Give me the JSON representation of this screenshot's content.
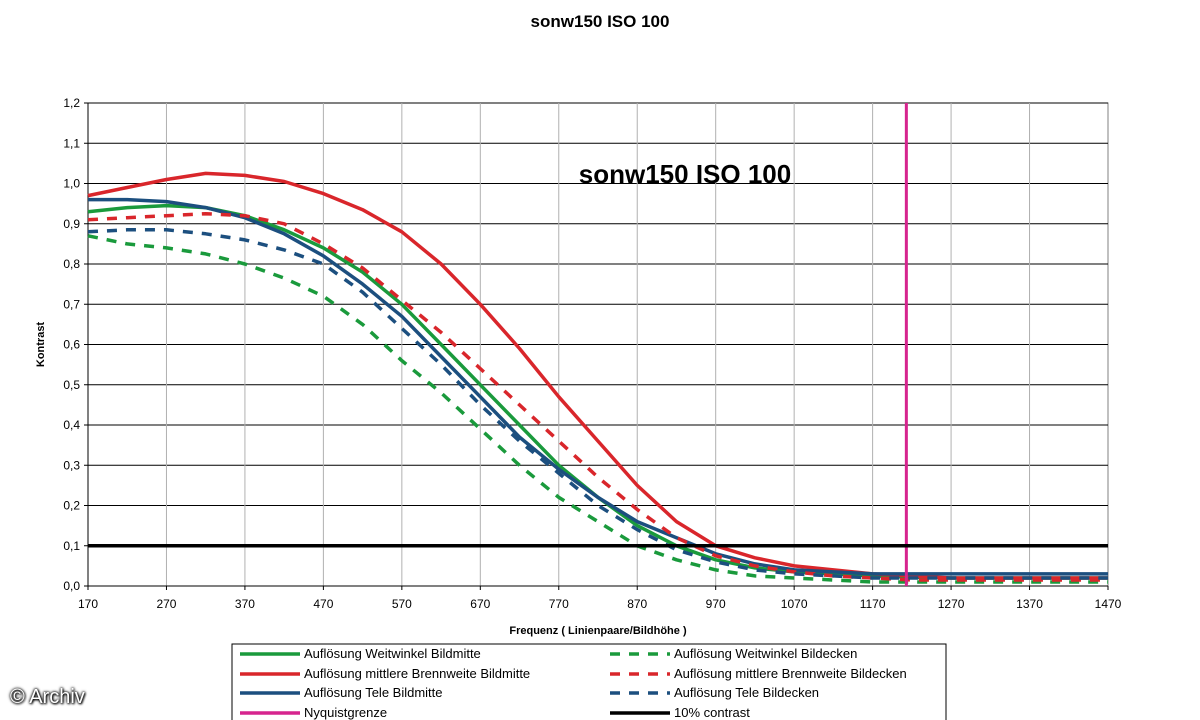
{
  "page": {
    "title": "sonw150 ISO 100",
    "watermark": "© Archiv"
  },
  "chart_data": {
    "type": "line",
    "title": "sonw150 ISO 100",
    "inner_title": "sonw150 ISO 100",
    "xlabel": "Frequenz ( Linienpaare/Bildhöhe )",
    "ylabel": "Kontrast",
    "xlim": [
      170,
      1470
    ],
    "ylim": [
      0,
      1.2
    ],
    "x_ticks": [
      "170",
      "270",
      "370",
      "470",
      "570",
      "670",
      "770",
      "870",
      "970",
      "1070",
      "1170",
      "1270",
      "1370",
      "1470"
    ],
    "y_ticks": [
      "0,0",
      "0,1",
      "0,2",
      "0,3",
      "0,4",
      "0,5",
      "0,6",
      "0,7",
      "0,8",
      "0,9",
      "1,0",
      "1,1",
      "1,2"
    ],
    "grid": "horizontal",
    "legend_position": "bottom",
    "series": [
      {
        "name": "Auflösung Weitwinkel Bildmitte",
        "color": "#1a9a3c",
        "dash": "solid",
        "x": [
          170,
          220,
          270,
          320,
          370,
          420,
          470,
          520,
          570,
          620,
          670,
          720,
          770,
          820,
          870,
          920,
          970,
          1020,
          1070,
          1120,
          1170,
          1220,
          1270,
          1370,
          1470
        ],
        "y": [
          0.93,
          0.94,
          0.945,
          0.94,
          0.92,
          0.885,
          0.84,
          0.78,
          0.7,
          0.6,
          0.5,
          0.4,
          0.3,
          0.22,
          0.15,
          0.1,
          0.065,
          0.045,
          0.035,
          0.03,
          0.025,
          0.022,
          0.02,
          0.02,
          0.02
        ]
      },
      {
        "name": "Auflösung mittlere Brennweite Bildmitte",
        "color": "#d9262b",
        "dash": "solid",
        "x": [
          170,
          220,
          270,
          320,
          370,
          420,
          470,
          520,
          570,
          620,
          670,
          720,
          770,
          820,
          870,
          920,
          970,
          1020,
          1070,
          1120,
          1170,
          1220,
          1270,
          1370,
          1470
        ],
        "y": [
          0.97,
          0.99,
          1.01,
          1.025,
          1.02,
          1.005,
          0.975,
          0.935,
          0.88,
          0.8,
          0.7,
          0.59,
          0.47,
          0.36,
          0.25,
          0.16,
          0.1,
          0.07,
          0.05,
          0.04,
          0.03,
          0.025,
          0.02,
          0.02,
          0.02
        ]
      },
      {
        "name": "Auflösung Tele Bildmitte",
        "color": "#1c4f7f",
        "dash": "solid",
        "x": [
          170,
          220,
          270,
          320,
          370,
          420,
          470,
          520,
          570,
          620,
          670,
          720,
          770,
          820,
          870,
          920,
          970,
          1020,
          1070,
          1120,
          1170,
          1220,
          1270,
          1370,
          1470
        ],
        "y": [
          0.96,
          0.96,
          0.955,
          0.94,
          0.915,
          0.875,
          0.82,
          0.75,
          0.67,
          0.57,
          0.47,
          0.37,
          0.29,
          0.22,
          0.16,
          0.12,
          0.08,
          0.055,
          0.04,
          0.035,
          0.03,
          0.03,
          0.03,
          0.03,
          0.03
        ]
      },
      {
        "name": "Auflösung Weitwinkel Bildecken",
        "color": "#1a9a3c",
        "dash": "dashed",
        "x": [
          170,
          220,
          270,
          320,
          370,
          420,
          470,
          520,
          570,
          620,
          670,
          720,
          770,
          820,
          870,
          920,
          970,
          1020,
          1070,
          1120,
          1170,
          1220,
          1270,
          1370,
          1470
        ],
        "y": [
          0.87,
          0.85,
          0.84,
          0.825,
          0.8,
          0.765,
          0.72,
          0.65,
          0.56,
          0.48,
          0.39,
          0.3,
          0.22,
          0.16,
          0.1,
          0.065,
          0.04,
          0.025,
          0.02,
          0.015,
          0.01,
          0.01,
          0.01,
          0.01,
          0.01
        ]
      },
      {
        "name": "Auflösung mittlere Brennweite Bildecken",
        "color": "#d9262b",
        "dash": "dashed",
        "x": [
          170,
          220,
          270,
          320,
          370,
          420,
          470,
          520,
          570,
          620,
          670,
          720,
          770,
          820,
          870,
          920,
          970,
          1020,
          1070,
          1120,
          1170,
          1220,
          1270,
          1370,
          1470
        ],
        "y": [
          0.91,
          0.915,
          0.92,
          0.925,
          0.92,
          0.9,
          0.85,
          0.79,
          0.71,
          0.63,
          0.54,
          0.45,
          0.36,
          0.27,
          0.19,
          0.12,
          0.075,
          0.05,
          0.035,
          0.025,
          0.02,
          0.015,
          0.015,
          0.015,
          0.015
        ]
      },
      {
        "name": "Auflösung Tele Bildecken",
        "color": "#1c4f7f",
        "dash": "dashed",
        "x": [
          170,
          220,
          270,
          320,
          370,
          420,
          470,
          520,
          570,
          620,
          670,
          720,
          770,
          820,
          870,
          920,
          970,
          1020,
          1070,
          1120,
          1170,
          1220,
          1270,
          1370,
          1470
        ],
        "y": [
          0.88,
          0.885,
          0.885,
          0.875,
          0.86,
          0.835,
          0.8,
          0.73,
          0.64,
          0.55,
          0.45,
          0.36,
          0.28,
          0.2,
          0.14,
          0.09,
          0.06,
          0.04,
          0.03,
          0.025,
          0.02,
          0.02,
          0.02,
          0.02,
          0.02
        ]
      }
    ],
    "reference_lines": [
      {
        "name": "Nyquistgrenze",
        "orientation": "vertical",
        "value": 1213,
        "color": "#d6248e"
      },
      {
        "name": "10% contrast",
        "orientation": "horizontal",
        "value": 0.1,
        "color": "#000000"
      }
    ]
  }
}
